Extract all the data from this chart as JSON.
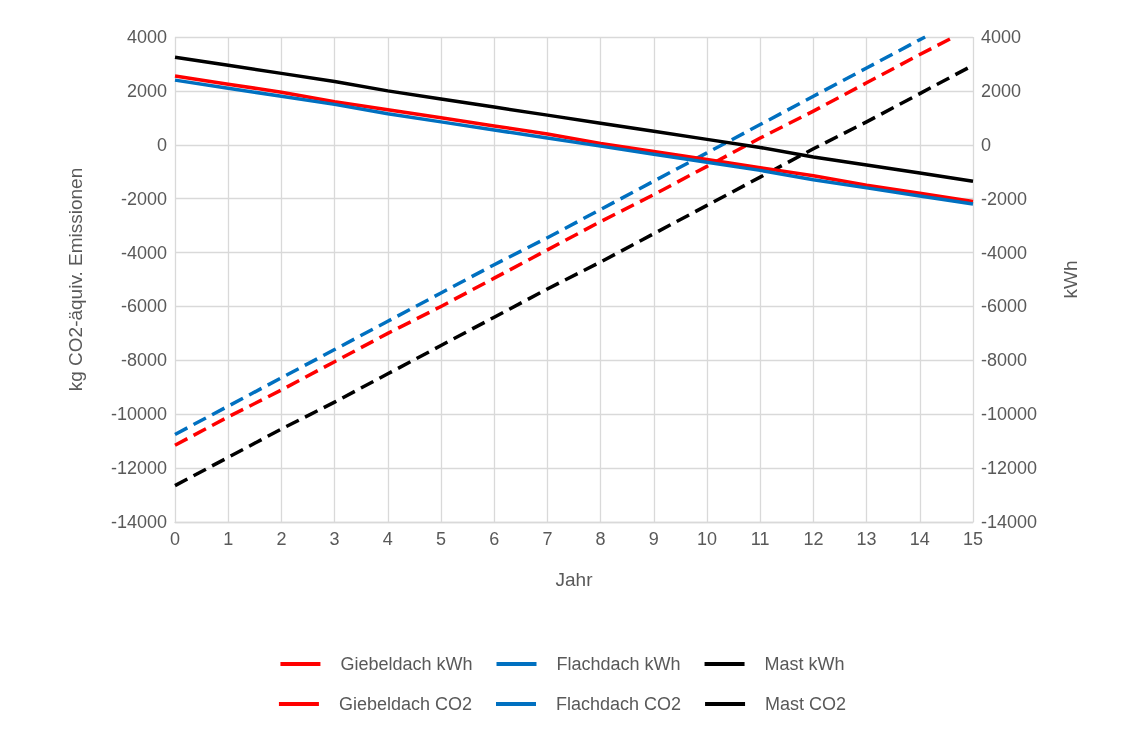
{
  "chart_data": {
    "type": "line",
    "xlabel": "Jahr",
    "ylabel": "kg CO2-äquiv. Emissionen",
    "y2label": "kWh",
    "xlim": [
      0,
      15
    ],
    "xticks": [
      0,
      1,
      2,
      3,
      4,
      5,
      6,
      7,
      8,
      9,
      10,
      11,
      12,
      13,
      14,
      15
    ],
    "ylim": [
      -14000,
      4000
    ],
    "yticks": [
      -14000,
      -12000,
      -10000,
      -8000,
      -6000,
      -4000,
      -2000,
      0,
      2000,
      4000
    ],
    "y2lim": [
      -14000,
      4000
    ],
    "y2ticks": [
      -14000,
      -12000,
      -10000,
      -8000,
      -6000,
      -4000,
      -2000,
      0,
      2000,
      4000
    ],
    "grid": true,
    "legend": "bottom",
    "marker": "none",
    "series": [
      {
        "name": "Giebeldach kWh",
        "color": "#ff0000",
        "line_style": "dashed",
        "x": [
          0,
          1,
          2,
          3,
          4,
          5,
          6,
          7,
          8,
          9,
          10,
          11,
          12,
          13,
          14,
          14.64
        ],
        "values": [
          -11150,
          -10100,
          -9100,
          -8050,
          -7000,
          -6000,
          -4950,
          -3900,
          -2850,
          -1850,
          -800,
          250,
          1250,
          2300,
          3350,
          4000
        ]
      },
      {
        "name": "Flachdach kWh",
        "color": "#0070c0",
        "line_style": "dashed",
        "x": [
          0,
          1,
          2,
          3,
          4,
          5,
          6,
          7,
          8,
          9,
          10,
          11,
          12,
          13,
          14,
          14.1
        ],
        "values": [
          -10750,
          -9700,
          -8650,
          -7600,
          -6550,
          -5500,
          -4450,
          -3450,
          -2400,
          -1350,
          -300,
          750,
          1800,
          2850,
          3900,
          4000
        ]
      },
      {
        "name": "Mast kWh",
        "color": "#000000",
        "line_style": "dashed",
        "x": [
          0,
          1,
          2,
          3,
          4,
          5,
          6,
          7,
          8,
          9,
          10,
          11,
          12,
          13,
          14,
          15
        ],
        "values": [
          -12650,
          -11600,
          -10550,
          -9550,
          -8500,
          -7450,
          -6400,
          -5350,
          -4350,
          -3300,
          -2250,
          -1200,
          -150,
          850,
          1900,
          2950
        ]
      },
      {
        "name": "Giebeldach CO2",
        "color": "#ff0000",
        "line_style": "solid",
        "x": [
          0,
          1,
          2,
          3,
          4,
          5,
          6,
          7,
          8,
          9,
          10,
          11,
          12,
          13,
          14,
          15
        ],
        "values": [
          2550,
          2250,
          1950,
          1600,
          1300,
          1000,
          700,
          400,
          50,
          -250,
          -550,
          -850,
          -1150,
          -1500,
          -1800,
          -2100
        ]
      },
      {
        "name": "Flachdach CO2",
        "color": "#0070c0",
        "line_style": "solid",
        "x": [
          0,
          1,
          2,
          3,
          4,
          5,
          6,
          7,
          8,
          9,
          10,
          11,
          12,
          13,
          14,
          15
        ],
        "values": [
          2400,
          2100,
          1800,
          1500,
          1150,
          850,
          550,
          250,
          -50,
          -350,
          -650,
          -950,
          -1300,
          -1600,
          -1900,
          -2200
        ]
      },
      {
        "name": "Mast CO2",
        "color": "#000000",
        "line_style": "solid",
        "x": [
          0,
          1,
          2,
          3,
          4,
          5,
          6,
          7,
          8,
          9,
          10,
          11,
          12,
          13,
          14,
          15
        ],
        "values": [
          3250,
          2950,
          2650,
          2350,
          2000,
          1700,
          1400,
          1100,
          800,
          500,
          200,
          -100,
          -450,
          -750,
          -1050,
          -1350
        ]
      }
    ]
  }
}
